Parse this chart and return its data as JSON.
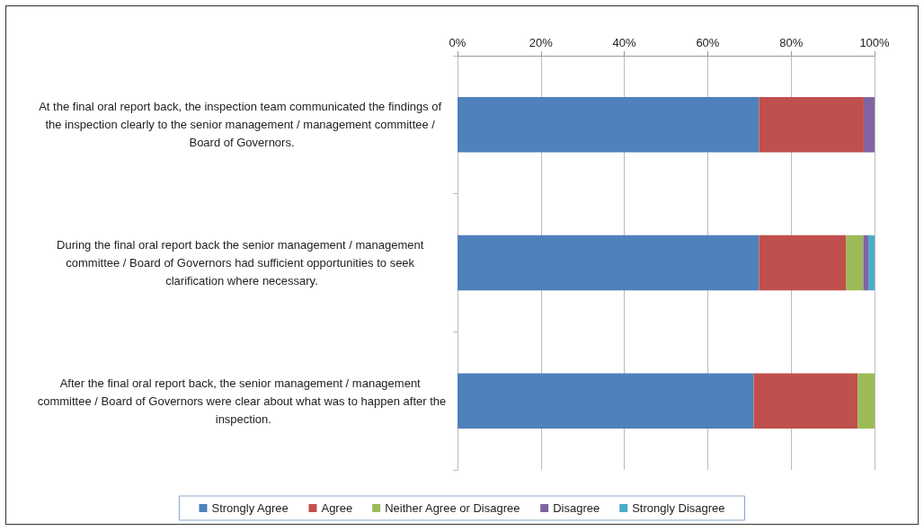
{
  "chart_data": {
    "type": "bar",
    "orientation": "horizontal",
    "stacked": true,
    "categories": [
      "At the final oral report back, the inspection team communicated the findings of the inspection clearly to the senior management / management committee / Board of Governors.",
      "During the final oral report back the senior management / management committee / Board of Governors had sufficient opportunities to seek clarification where necessary.",
      "After the final oral report back, the senior management / management committee / Board of Governors were clear about what was to happen after the inspection."
    ],
    "series": [
      {
        "name": "Strongly Agree",
        "color": "#4f81bd",
        "values": [
          72.3,
          72.3,
          71.0
        ]
      },
      {
        "name": "Agree",
        "color": "#c0504d",
        "values": [
          25.1,
          20.9,
          25.0
        ]
      },
      {
        "name": "Neither Agree or Disagree",
        "color": "#9bbb59",
        "values": [
          0,
          4.1,
          4.0
        ]
      },
      {
        "name": "Disagree",
        "color": "#8064a2",
        "values": [
          2.6,
          1.2,
          0
        ]
      },
      {
        "name": "Strongly Disagree",
        "color": "#4bacc6",
        "values": [
          0,
          1.5,
          0
        ]
      }
    ],
    "xlim": [
      0,
      100
    ],
    "xticks": [
      {
        "value": 0,
        "label": "0%"
      },
      {
        "value": 20,
        "label": "20%"
      },
      {
        "value": 40,
        "label": "40%"
      },
      {
        "value": 60,
        "label": "60%"
      },
      {
        "value": 80,
        "label": "80%"
      },
      {
        "value": 100,
        "label": "100%"
      }
    ],
    "grid": "x",
    "legend": "bottom"
  }
}
